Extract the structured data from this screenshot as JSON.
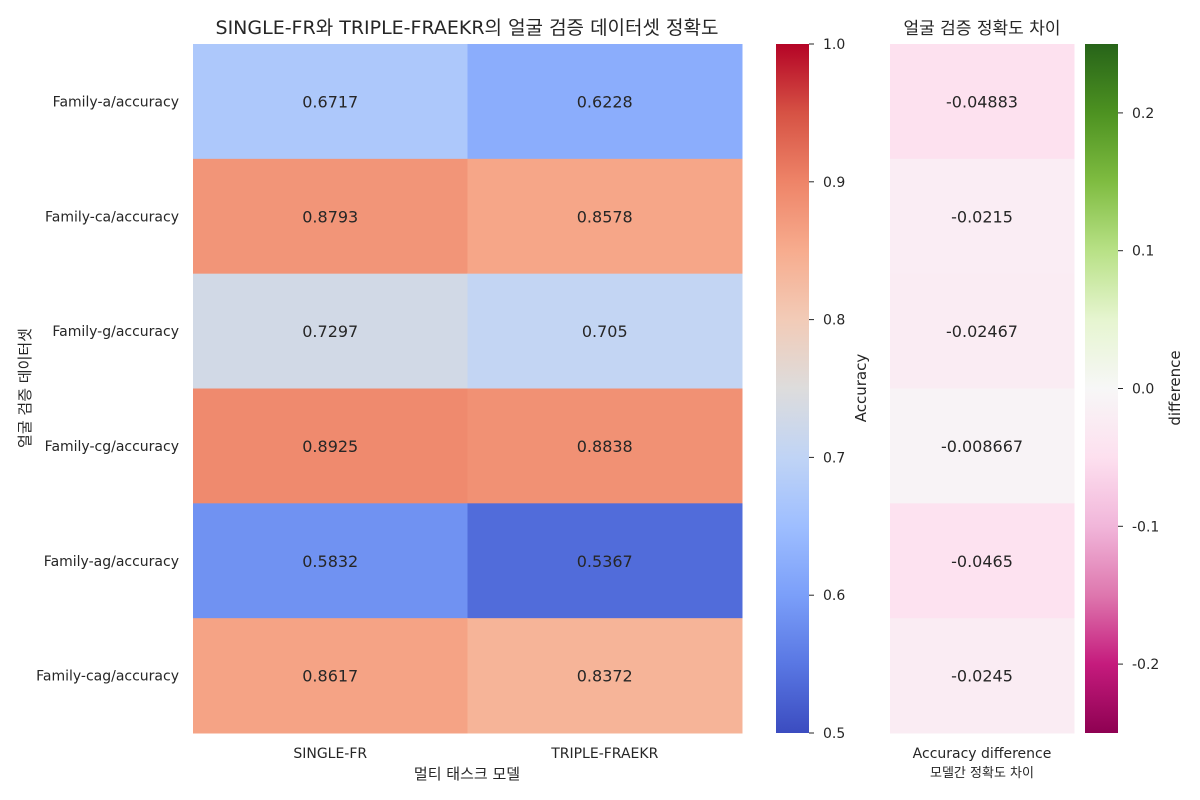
{
  "chart_data": [
    {
      "type": "heatmap",
      "title": "SINGLE-FR와 TRIPLE-FRAEKR의 얼굴 검증 데이터셋 정확도",
      "xlabel": "멀티 태스크 모델",
      "ylabel": "얼굴 검증 데이터셋",
      "x_categories": [
        "SINGLE-FR",
        "TRIPLE-FRAEKR"
      ],
      "y_categories": [
        "Family-a/accuracy",
        "Family-ca/accuracy",
        "Family-g/accuracy",
        "Family-cg/accuracy",
        "Family-ag/accuracy",
        "Family-cag/accuracy"
      ],
      "values": [
        [
          0.6717,
          0.6228
        ],
        [
          0.8793,
          0.8578
        ],
        [
          0.7297,
          0.705
        ],
        [
          0.8925,
          0.8838
        ],
        [
          0.5832,
          0.5367
        ],
        [
          0.8617,
          0.8372
        ]
      ],
      "value_labels": [
        [
          "0.6717",
          "0.6228"
        ],
        [
          "0.8793",
          "0.8578"
        ],
        [
          "0.7297",
          "0.705"
        ],
        [
          "0.8925",
          "0.8838"
        ],
        [
          "0.5832",
          "0.5367"
        ],
        [
          "0.8617",
          "0.8372"
        ]
      ],
      "colormap": "coolwarm",
      "colorbar": {
        "label": "Accuracy",
        "range": [
          0.5,
          1.0
        ],
        "ticks": [
          0.5,
          0.6,
          0.7,
          0.8,
          0.9,
          1.0
        ],
        "tick_labels": [
          "0.5",
          "0.6",
          "0.7",
          "0.8",
          "0.9",
          "1.0"
        ]
      }
    },
    {
      "type": "heatmap",
      "title": "얼굴 검증 정확도 차이",
      "xlabel": "모델간 정확도 차이",
      "ylabel": "",
      "x_categories": [
        "Accuracy difference"
      ],
      "y_categories": [
        "Family-a/accuracy",
        "Family-ca/accuracy",
        "Family-g/accuracy",
        "Family-cg/accuracy",
        "Family-ag/accuracy",
        "Family-cag/accuracy"
      ],
      "values": [
        [
          -0.04883
        ],
        [
          -0.0215
        ],
        [
          -0.02467
        ],
        [
          -0.008667
        ],
        [
          -0.0465
        ],
        [
          -0.0245
        ]
      ],
      "value_labels": [
        [
          "-0.04883"
        ],
        [
          "-0.0215"
        ],
        [
          "-0.02467"
        ],
        [
          "-0.008667"
        ],
        [
          "-0.0465"
        ],
        [
          "-0.0245"
        ]
      ],
      "colormap": "PiYG",
      "colorbar": {
        "label": "difference",
        "range": [
          -0.25,
          0.25
        ],
        "ticks": [
          -0.2,
          -0.1,
          0.0,
          0.1,
          0.2
        ],
        "tick_labels": [
          "-0.2",
          "-0.1",
          "0.0",
          "0.1",
          "0.2"
        ]
      }
    }
  ]
}
